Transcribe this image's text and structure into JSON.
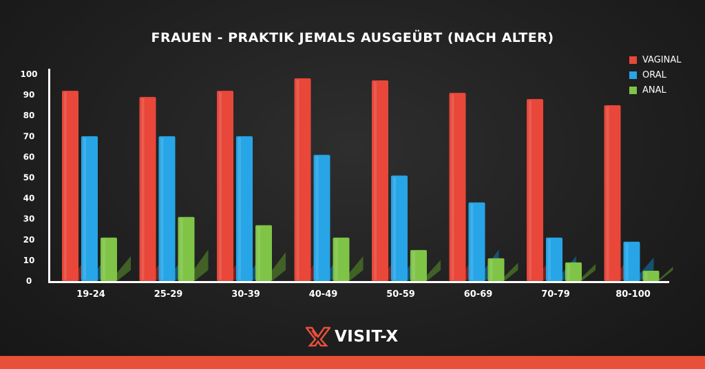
{
  "chart_data": {
    "type": "bar",
    "title": "FRAUEN - PRAKTIK JEMALS AUSGEÜBT (NACH ALTER)",
    "categories": [
      "19-24",
      "25-29",
      "30-39",
      "40-49",
      "50-59",
      "60-69",
      "70-79",
      "80-100"
    ],
    "series": [
      {
        "name": "VAGINAL",
        "color": "#e8473a",
        "values": [
          92,
          89,
          92,
          98,
          97,
          91,
          88,
          85
        ]
      },
      {
        "name": "ORAL",
        "color": "#27a5e6",
        "values": [
          70,
          70,
          70,
          61,
          51,
          38,
          21,
          19
        ]
      },
      {
        "name": "ANAL",
        "color": "#7fc447",
        "values": [
          21,
          31,
          27,
          21,
          15,
          11,
          9,
          5
        ]
      }
    ],
    "yticks": [
      "0",
      "10",
      "20",
      "30",
      "40",
      "50",
      "60",
      "70",
      "80",
      "90",
      "100"
    ],
    "ylim": [
      0,
      100
    ],
    "xlabel": "",
    "ylabel": "",
    "legend_position": "top-right",
    "grid": false
  },
  "brand": {
    "name": "VISIT-X",
    "logo_icon": "visit-x-logo-icon",
    "accent_color": "#e8503a"
  }
}
